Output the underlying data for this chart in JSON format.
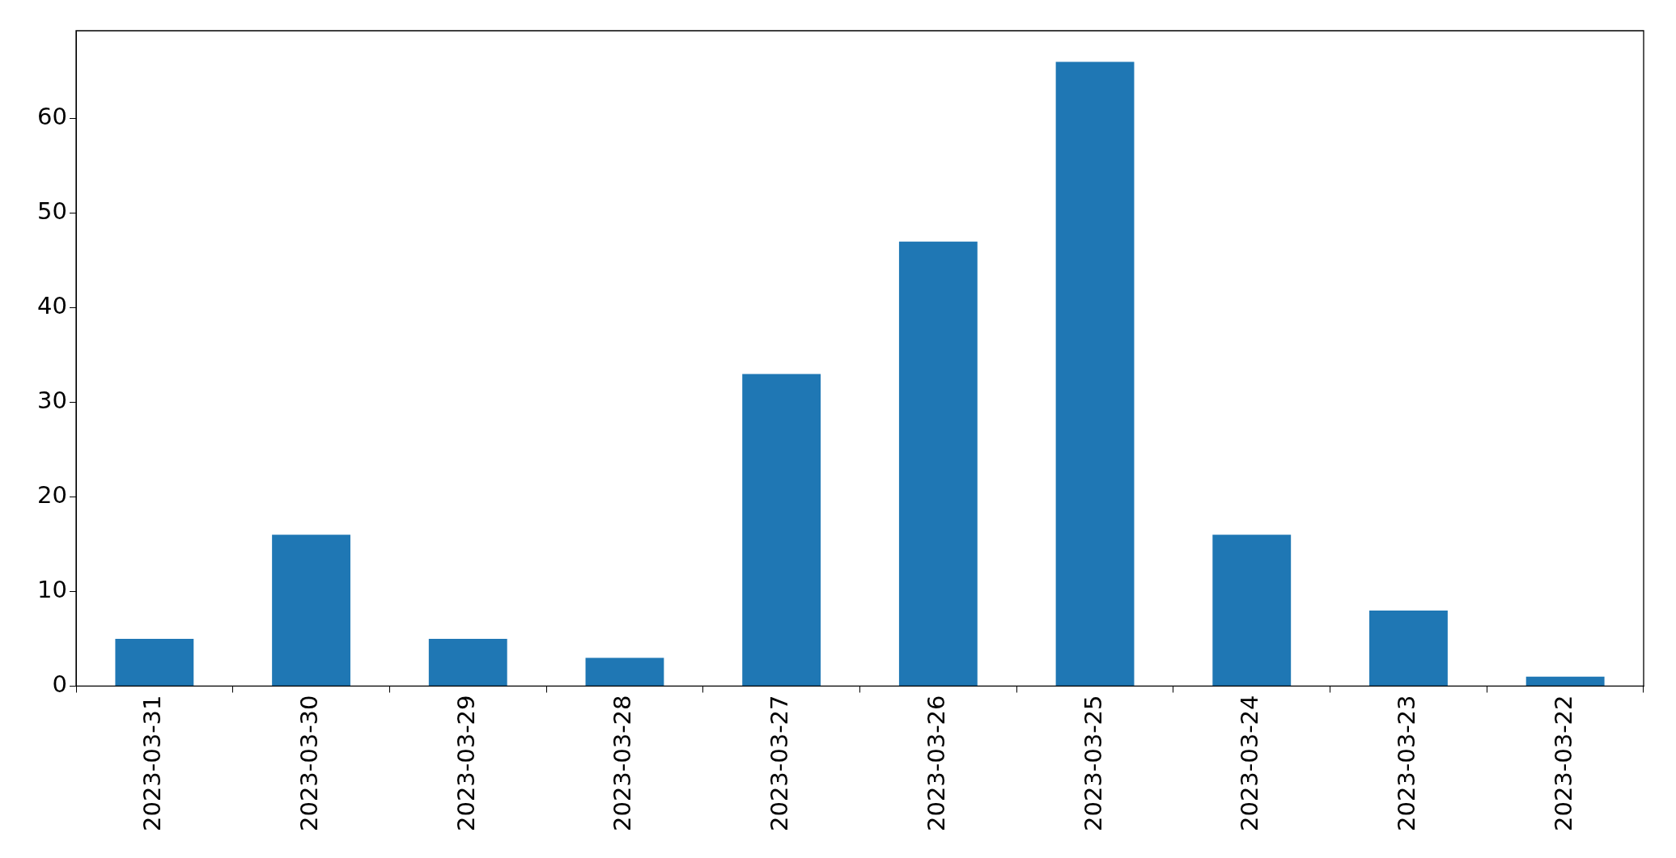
{
  "chart_data": {
    "type": "bar",
    "categories": [
      "2023-03-31",
      "2023-03-30",
      "2023-03-29",
      "2023-03-28",
      "2023-03-27",
      "2023-03-26",
      "2023-03-25",
      "2023-03-24",
      "2023-03-23",
      "2023-03-22"
    ],
    "values": [
      5,
      16,
      5,
      3,
      33,
      47,
      66,
      16,
      8,
      1
    ],
    "color": "#1f77b4",
    "ylim": [
      0,
      69.3
    ],
    "yticks": [
      0,
      10,
      20,
      30,
      40,
      50,
      60
    ],
    "grid": false,
    "legend": false
  }
}
